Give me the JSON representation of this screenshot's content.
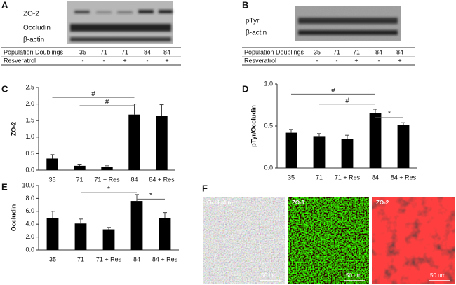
{
  "figure": {
    "A": {
      "label": "A",
      "blot_labels": [
        "ZO-2",
        "Occludin",
        "β-actin"
      ],
      "table": [
        [
          "Population Doublings",
          "35",
          "71",
          "71",
          "84",
          "84"
        ],
        [
          "Resveratrol",
          "-",
          "-",
          "+",
          "-",
          "+"
        ]
      ]
    },
    "B": {
      "label": "B",
      "blot_labels": [
        "pTyr",
        "β-actin"
      ],
      "table": [
        [
          "Population Doublings",
          "35",
          "71",
          "71",
          "84",
          "84"
        ],
        [
          "Resveratrol",
          "-",
          "-",
          "+",
          "-",
          "+"
        ]
      ]
    },
    "F": {
      "label": "F",
      "images": [
        {
          "title": "Occludin",
          "scale": "50 um"
        },
        {
          "title": "ZO-1",
          "scale": "50 um"
        },
        {
          "title": "ZO-2",
          "scale": "50 um"
        }
      ]
    }
  },
  "chart_data": [
    {
      "type": "bar",
      "label": "C",
      "ylabel": "ZO-2",
      "color": "#000000",
      "categories": [
        "35",
        "71",
        "71 + Res",
        "84",
        "84 + Res"
      ],
      "values": [
        0.35,
        0.13,
        0.1,
        1.68,
        1.65
      ],
      "errors": [
        0.12,
        0.05,
        0.03,
        0.32,
        0.33
      ],
      "ylim": [
        0,
        2.5
      ],
      "yticks": [
        {
          "value": 0,
          "label": "0.0"
        },
        0.5,
        {
          "value": 1,
          "label": "1.0"
        },
        1.5,
        {
          "value": 2,
          "label": "2.0"
        },
        2.5
      ],
      "brackets": [
        {
          "text": "#",
          "from": 0,
          "to": 3,
          "y": 2.2
        },
        {
          "text": "#",
          "from": 1,
          "to": 3,
          "y": 1.95
        }
      ]
    },
    {
      "type": "bar",
      "label": "D",
      "ylabel": "pTyr/Occludin",
      "color": "#000000",
      "categories": [
        "35",
        "71",
        "71 + Res",
        "84",
        "84 + Res"
      ],
      "values": [
        0.42,
        0.38,
        0.35,
        0.65,
        0.51
      ],
      "errors": [
        0.04,
        0.03,
        0.04,
        0.05,
        0.03
      ],
      "ylim": [
        0,
        1
      ],
      "yticks": [
        {
          "value": 0,
          "label": "0.0"
        },
        0.5,
        {
          "value": 1,
          "label": "1.0"
        }
      ],
      "brackets": [
        {
          "text": "#",
          "from": 0,
          "to": 3,
          "y": 0.88
        },
        {
          "text": "#",
          "from": 1,
          "to": 3,
          "y": 0.76
        },
        {
          "text": "*",
          "from": 3,
          "to": 4,
          "y": 0.6
        }
      ]
    },
    {
      "type": "bar",
      "label": "E",
      "ylabel": "Occludin",
      "color": "#000000",
      "categories": [
        "35",
        "71",
        "71 + Res",
        "84",
        "84 + Res"
      ],
      "values": [
        4.9,
        4.1,
        3.2,
        7.6,
        5.0
      ],
      "errors": [
        1.1,
        0.7,
        0.3,
        1.0,
        0.8
      ],
      "ylim": [
        0,
        10
      ],
      "yticks": [
        {
          "value": 0,
          "label": "0.0"
        },
        {
          "value": 2,
          "label": "2.0"
        },
        {
          "value": 4,
          "label": "4.0"
        },
        {
          "value": 6,
          "label": "6.0"
        },
        {
          "value": 8,
          "label": "8.0"
        },
        {
          "value": 10,
          "label": "10.0"
        }
      ],
      "brackets": [
        {
          "text": "*",
          "from": 1,
          "to": 3,
          "y": 8.9
        },
        {
          "text": "*",
          "from": 3,
          "to": 4,
          "y": 7.9
        }
      ]
    }
  ]
}
